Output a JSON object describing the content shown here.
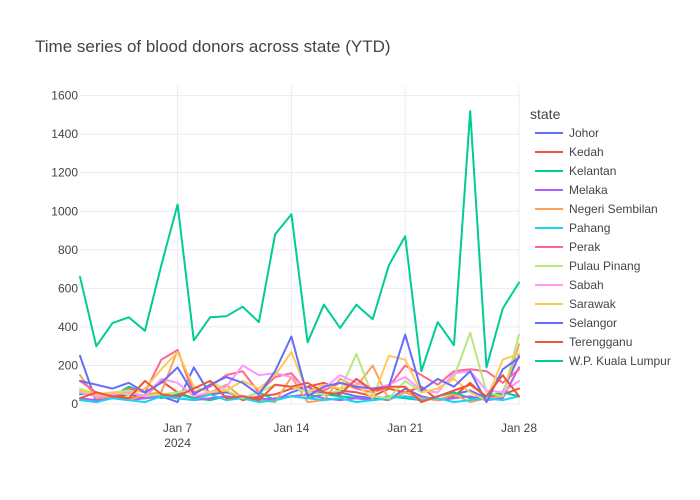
{
  "chart_data": {
    "type": "line",
    "title": "Time series of blood donors across state (YTD)",
    "xlabel": "",
    "ylabel": "",
    "legend_title": "state",
    "legend_position": "right",
    "x": [
      "2024-01-01",
      "2024-01-02",
      "2024-01-03",
      "2024-01-04",
      "2024-01-05",
      "2024-01-06",
      "2024-01-07",
      "2024-01-08",
      "2024-01-09",
      "2024-01-10",
      "2024-01-11",
      "2024-01-12",
      "2024-01-13",
      "2024-01-14",
      "2024-01-15",
      "2024-01-16",
      "2024-01-17",
      "2024-01-18",
      "2024-01-19",
      "2024-01-20",
      "2024-01-21",
      "2024-01-22",
      "2024-01-23",
      "2024-01-24",
      "2024-01-25",
      "2024-01-26",
      "2024-01-27",
      "2024-01-28"
    ],
    "xlim": [
      "2024-01-01",
      "2024-01-28"
    ],
    "ylim": [
      0,
      1650
    ],
    "x_ticks": [
      {
        "date": "2024-01-07",
        "label": "Jan 7",
        "sublabel": "2024"
      },
      {
        "date": "2024-01-14",
        "label": "Jan 14",
        "sublabel": ""
      },
      {
        "date": "2024-01-21",
        "label": "Jan 21",
        "sublabel": ""
      },
      {
        "date": "2024-01-28",
        "label": "Jan 28",
        "sublabel": ""
      }
    ],
    "y_ticks": [
      0,
      200,
      400,
      600,
      800,
      1000,
      1200,
      1400,
      1600
    ],
    "y_tick_labels": [
      "0",
      "200",
      "400",
      "600",
      "800",
      "1000",
      "1200",
      "1400",
      "1600"
    ],
    "series": [
      {
        "name": "Johor",
        "color": "#636efa",
        "values": [
          250,
          10,
          40,
          50,
          30,
          40,
          10,
          190,
          50,
          60,
          40,
          30,
          20,
          60,
          90,
          50,
          60,
          40,
          30,
          20,
          80,
          40,
          20,
          50,
          70,
          30,
          60,
          250
        ]
      },
      {
        "name": "Kedah",
        "color": "#ef553b",
        "values": [
          60,
          40,
          50,
          30,
          40,
          120,
          60,
          30,
          60,
          70,
          20,
          40,
          50,
          80,
          90,
          110,
          70,
          60,
          40,
          80,
          60,
          90,
          20,
          40,
          110,
          30,
          50,
          80
        ]
      },
      {
        "name": "Kelantan",
        "color": "#00cc96",
        "values": [
          50,
          60,
          40,
          90,
          60,
          30,
          50,
          30,
          20,
          40,
          30,
          60,
          20,
          40,
          30,
          50,
          40,
          30,
          20,
          40,
          30,
          20,
          40,
          60,
          30,
          40,
          60,
          40
        ]
      },
      {
        "name": "Melaka",
        "color": "#ab63fa",
        "values": [
          30,
          20,
          30,
          20,
          30,
          40,
          30,
          20,
          30,
          40,
          30,
          20,
          30,
          40,
          50,
          30,
          20,
          30,
          20,
          30,
          40,
          30,
          20,
          30,
          40,
          20,
          30,
          190
        ]
      },
      {
        "name": "Negeri Sembilan",
        "color": "#ffa15a",
        "values": [
          150,
          30,
          40,
          20,
          50,
          60,
          280,
          40,
          60,
          100,
          30,
          20,
          10,
          140,
          10,
          20,
          130,
          90,
          200,
          20,
          60,
          30,
          20,
          50,
          10,
          30,
          40,
          310
        ]
      },
      {
        "name": "Pahang",
        "color": "#19d3f3",
        "values": [
          20,
          10,
          30,
          20,
          10,
          40,
          30,
          20,
          50,
          20,
          30,
          10,
          20,
          40,
          30,
          20,
          30,
          10,
          20,
          30,
          40,
          20,
          30,
          10,
          20,
          30,
          20,
          40
        ]
      },
      {
        "name": "Perak",
        "color": "#ff6692",
        "values": [
          120,
          60,
          40,
          80,
          60,
          230,
          280,
          60,
          90,
          150,
          170,
          60,
          140,
          160,
          60,
          70,
          110,
          80,
          60,
          90,
          200,
          150,
          100,
          170,
          180,
          170,
          110,
          180
        ]
      },
      {
        "name": "Pulau Pinang",
        "color": "#b6e880",
        "values": [
          80,
          50,
          60,
          70,
          40,
          50,
          60,
          80,
          120,
          70,
          30,
          60,
          100,
          90,
          60,
          50,
          70,
          260,
          40,
          30,
          120,
          60,
          80,
          140,
          370,
          60,
          40,
          360
        ]
      },
      {
        "name": "Sabah",
        "color": "#ff97ff",
        "values": [
          60,
          40,
          50,
          60,
          40,
          130,
          110,
          40,
          60,
          90,
          200,
          150,
          160,
          140,
          70,
          80,
          150,
          110,
          80,
          100,
          140,
          70,
          60,
          160,
          170,
          70,
          60,
          120
        ]
      },
      {
        "name": "Sarawak",
        "color": "#fecb52",
        "values": [
          70,
          50,
          60,
          50,
          80,
          180,
          270,
          90,
          60,
          70,
          120,
          80,
          150,
          270,
          60,
          100,
          80,
          100,
          30,
          250,
          230,
          60,
          80,
          130,
          60,
          20,
          230,
          260
        ]
      },
      {
        "name": "Selangor",
        "color": "#636efa",
        "values": [
          120,
          100,
          80,
          110,
          60,
          110,
          190,
          50,
          100,
          140,
          110,
          50,
          170,
          350,
          40,
          90,
          110,
          90,
          80,
          90,
          360,
          70,
          130,
          90,
          170,
          10,
          180,
          240
        ]
      },
      {
        "name": "Terengganu",
        "color": "#ef553b",
        "values": [
          30,
          60,
          40,
          30,
          120,
          50,
          40,
          80,
          120,
          30,
          40,
          20,
          100,
          90,
          110,
          60,
          50,
          130,
          70,
          90,
          90,
          10,
          40,
          70,
          100,
          40,
          150,
          40
        ]
      },
      {
        "name": "W.P. Kuala Lumpur",
        "color": "#00cc96",
        "values": [
          660,
          300,
          420,
          450,
          380,
          720,
          1035,
          330,
          450,
          455,
          505,
          425,
          880,
          985,
          320,
          515,
          395,
          515,
          440,
          720,
          870,
          170,
          425,
          305,
          1520,
          190,
          495,
          630
        ]
      }
    ]
  }
}
